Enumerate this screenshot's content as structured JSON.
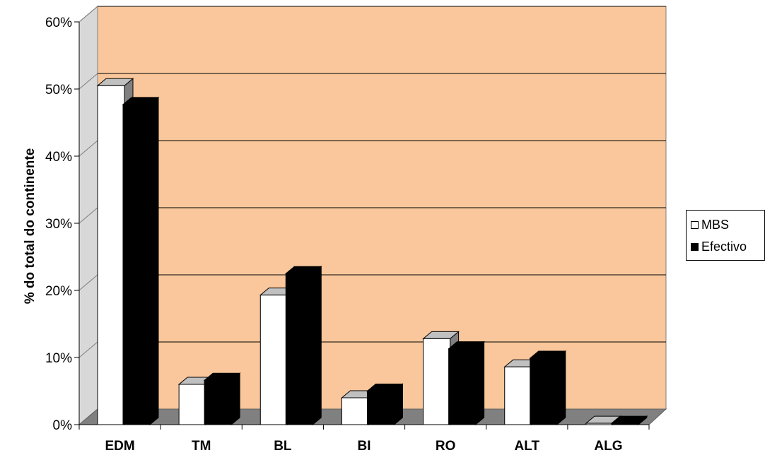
{
  "chart_data": {
    "type": "bar",
    "title": "",
    "xlabel": "",
    "ylabel": "% do total do continente",
    "categories": [
      "EDM",
      "TM",
      "BL",
      "BI",
      "RO",
      "ALT",
      "ALG"
    ],
    "series": [
      {
        "name": "MBS",
        "values": [
          50.5,
          6.0,
          19.3,
          4.0,
          12.8,
          8.6,
          0.2
        ],
        "color": "#ffffff"
      },
      {
        "name": "Efectivo",
        "values": [
          47.7,
          6.6,
          22.5,
          5.0,
          11.3,
          9.9,
          0.2
        ],
        "color": "#000000"
      }
    ],
    "ylim": [
      0,
      60
    ],
    "yticks": [
      "0%",
      "10%",
      "20%",
      "30%",
      "40%",
      "50%",
      "60%"
    ],
    "grid": true,
    "legend_position": "right",
    "plot_background": "#f9c79b",
    "floor_color": "#808080",
    "wall_color": "#d8d8d8"
  }
}
